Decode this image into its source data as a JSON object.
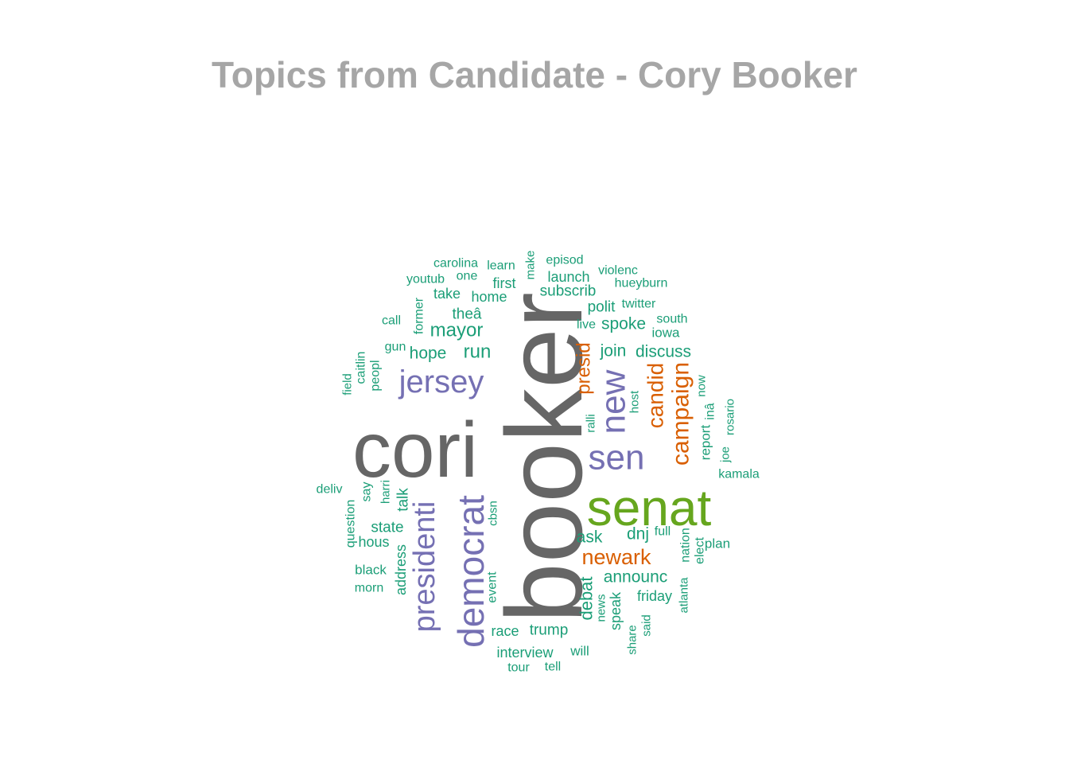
{
  "colors": {
    "title": "#a6a6a6",
    "gray": "#666666",
    "purple": "#7570b3",
    "orange": "#d95f02",
    "green": "#66a61e",
    "teal": "#1b9e77"
  },
  "chart_data": {
    "type": "wordcloud",
    "title": "Topics from Candidate - Cory Booker",
    "words": [
      {
        "text": "booker",
        "weight": 100,
        "color": "gray",
        "rotate": -90
      },
      {
        "text": "cori",
        "weight": 92,
        "color": "gray",
        "rotate": 0
      },
      {
        "text": "senat",
        "weight": 62,
        "color": "green",
        "rotate": 0
      },
      {
        "text": "democrat",
        "weight": 46,
        "color": "purple",
        "rotate": -90
      },
      {
        "text": "presidenti",
        "weight": 40,
        "color": "purple",
        "rotate": -90
      },
      {
        "text": "jersey",
        "weight": 42,
        "color": "purple",
        "rotate": 0
      },
      {
        "text": "new",
        "weight": 42,
        "color": "purple",
        "rotate": -90
      },
      {
        "text": "sen",
        "weight": 42,
        "color": "purple",
        "rotate": 0
      },
      {
        "text": "campaign",
        "weight": 30,
        "color": "orange",
        "rotate": -90
      },
      {
        "text": "candid",
        "weight": 27,
        "color": "orange",
        "rotate": -90
      },
      {
        "text": "newark",
        "weight": 27,
        "color": "orange",
        "rotate": 0
      },
      {
        "text": "presid",
        "weight": 25,
        "color": "orange",
        "rotate": -90
      },
      {
        "text": "mayor",
        "weight": 23,
        "color": "teal",
        "rotate": 0
      },
      {
        "text": "run",
        "weight": 23,
        "color": "teal",
        "rotate": 0
      },
      {
        "text": "debat",
        "weight": 22,
        "color": "teal",
        "rotate": -90
      },
      {
        "text": "announc",
        "weight": 21,
        "color": "teal",
        "rotate": 0
      },
      {
        "text": "hope",
        "weight": 20,
        "color": "teal",
        "rotate": 0
      },
      {
        "text": "discuss",
        "weight": 20,
        "color": "teal",
        "rotate": 0
      },
      {
        "text": "join",
        "weight": 20,
        "color": "teal",
        "rotate": 0
      },
      {
        "text": "spoke",
        "weight": 20,
        "color": "teal",
        "rotate": 0
      },
      {
        "text": "dnj",
        "weight": 20,
        "color": "teal",
        "rotate": 0
      },
      {
        "text": "ask",
        "weight": 20,
        "color": "teal",
        "rotate": 0
      },
      {
        "text": "subscrib",
        "weight": 19,
        "color": "teal",
        "rotate": 0
      },
      {
        "text": "theâ",
        "weight": 19,
        "color": "teal",
        "rotate": 0
      },
      {
        "text": "polit",
        "weight": 19,
        "color": "teal",
        "rotate": 0
      },
      {
        "text": "state",
        "weight": 19,
        "color": "teal",
        "rotate": 0
      },
      {
        "text": "talk",
        "weight": 19,
        "color": "teal",
        "rotate": -90
      },
      {
        "text": "trump",
        "weight": 18,
        "color": "teal",
        "rotate": 0
      },
      {
        "text": "race",
        "weight": 18,
        "color": "teal",
        "rotate": 0
      },
      {
        "text": "friday",
        "weight": 18,
        "color": "teal",
        "rotate": 0
      },
      {
        "text": "interview",
        "weight": 18,
        "color": "teal",
        "rotate": 0
      },
      {
        "text": "launch",
        "weight": 18,
        "color": "teal",
        "rotate": 0
      },
      {
        "text": "home",
        "weight": 18,
        "color": "teal",
        "rotate": 0
      },
      {
        "text": "take",
        "weight": 18,
        "color": "teal",
        "rotate": 0
      },
      {
        "text": "first",
        "weight": 18,
        "color": "teal",
        "rotate": 0
      },
      {
        "text": "hous",
        "weight": 18,
        "color": "teal",
        "rotate": 0
      },
      {
        "text": "address",
        "weight": 18,
        "color": "teal",
        "rotate": -90
      },
      {
        "text": "speak",
        "weight": 18,
        "color": "teal",
        "rotate": -90
      },
      {
        "text": "will",
        "weight": 17,
        "color": "teal",
        "rotate": 0
      },
      {
        "text": "plan",
        "weight": 17,
        "color": "teal",
        "rotate": 0
      },
      {
        "text": "iowa",
        "weight": 17,
        "color": "teal",
        "rotate": 0
      },
      {
        "text": "report",
        "weight": 17,
        "color": "teal",
        "rotate": -90
      },
      {
        "text": "black",
        "weight": 17,
        "color": "teal",
        "rotate": 0
      },
      {
        "text": "morn",
        "weight": 16,
        "color": "teal",
        "rotate": 0
      },
      {
        "text": "carolina",
        "weight": 16,
        "color": "teal",
        "rotate": 0
      },
      {
        "text": "learn",
        "weight": 16,
        "color": "teal",
        "rotate": 0
      },
      {
        "text": "episod",
        "weight": 16,
        "color": "teal",
        "rotate": 0
      },
      {
        "text": "violenc",
        "weight": 16,
        "color": "teal",
        "rotate": 0
      },
      {
        "text": "hueyburn",
        "weight": 16,
        "color": "teal",
        "rotate": 0
      },
      {
        "text": "youtub",
        "weight": 16,
        "color": "teal",
        "rotate": 0
      },
      {
        "text": "one",
        "weight": 16,
        "color": "teal",
        "rotate": 0
      },
      {
        "text": "twitter",
        "weight": 16,
        "color": "teal",
        "rotate": 0
      },
      {
        "text": "south",
        "weight": 16,
        "color": "teal",
        "rotate": 0
      },
      {
        "text": "live",
        "weight": 16,
        "color": "teal",
        "rotate": 0
      },
      {
        "text": "call",
        "weight": 16,
        "color": "teal",
        "rotate": 0
      },
      {
        "text": "gun",
        "weight": 16,
        "color": "teal",
        "rotate": 0
      },
      {
        "text": "former",
        "weight": 16,
        "color": "teal",
        "rotate": -90
      },
      {
        "text": "peopl",
        "weight": 16,
        "color": "teal",
        "rotate": -90
      },
      {
        "text": "caitlin",
        "weight": 16,
        "color": "teal",
        "rotate": -90
      },
      {
        "text": "field",
        "weight": 15,
        "color": "teal",
        "rotate": -90
      },
      {
        "text": "make",
        "weight": 15,
        "color": "teal",
        "rotate": -90
      },
      {
        "text": "host",
        "weight": 15,
        "color": "teal",
        "rotate": -90
      },
      {
        "text": "ralli",
        "weight": 15,
        "color": "teal",
        "rotate": -90
      },
      {
        "text": "now",
        "weight": 15,
        "color": "teal",
        "rotate": -90
      },
      {
        "text": "inâ",
        "weight": 16,
        "color": "teal",
        "rotate": -90
      },
      {
        "text": "rosario",
        "weight": 15,
        "color": "teal",
        "rotate": -90
      },
      {
        "text": "joe",
        "weight": 15,
        "color": "teal",
        "rotate": -90
      },
      {
        "text": "kamala",
        "weight": 16,
        "color": "teal",
        "rotate": 0
      },
      {
        "text": "deliv",
        "weight": 16,
        "color": "teal",
        "rotate": 0
      },
      {
        "text": "say",
        "weight": 16,
        "color": "teal",
        "rotate": -90
      },
      {
        "text": "harri",
        "weight": 15,
        "color": "teal",
        "rotate": -90
      },
      {
        "text": "question",
        "weight": 16,
        "color": "teal",
        "rotate": -90
      },
      {
        "text": "cbsn",
        "weight": 15,
        "color": "teal",
        "rotate": -90
      },
      {
        "text": "full",
        "weight": 16,
        "color": "teal",
        "rotate": 0
      },
      {
        "text": "nation",
        "weight": 16,
        "color": "teal",
        "rotate": -90
      },
      {
        "text": "elect",
        "weight": 16,
        "color": "teal",
        "rotate": -90
      },
      {
        "text": "event",
        "weight": 16,
        "color": "teal",
        "rotate": -90
      },
      {
        "text": "news",
        "weight": 15,
        "color": "teal",
        "rotate": -90
      },
      {
        "text": "atlanta",
        "weight": 15,
        "color": "teal",
        "rotate": -90
      },
      {
        "text": "share",
        "weight": 15,
        "color": "teal",
        "rotate": -90
      },
      {
        "text": "said",
        "weight": 15,
        "color": "teal",
        "rotate": -90
      },
      {
        "text": "tour",
        "weight": 16,
        "color": "teal",
        "rotate": 0
      },
      {
        "text": "tell",
        "weight": 16,
        "color": "teal",
        "rotate": 0
      }
    ]
  }
}
